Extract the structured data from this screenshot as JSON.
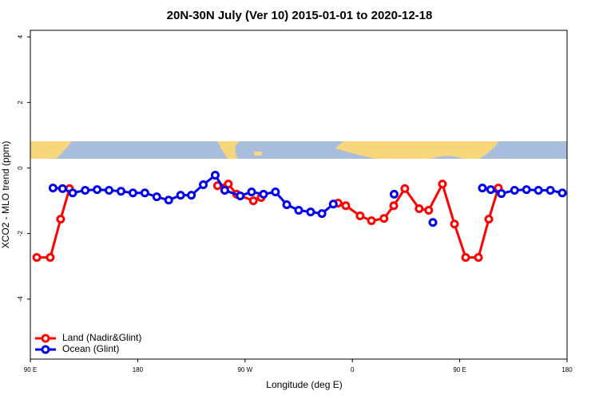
{
  "chart_data": {
    "type": "line",
    "title": "20N-30N July (Ver 10)   2015-01-01 to 2020-12-18",
    "x_label": "Longitude (deg E)",
    "y_label": "XCO2 - MLO trend (ppm)",
    "xlim": [
      90,
      540
    ],
    "ylim": [
      -5.83,
      4.2
    ],
    "xticks": [
      {
        "value": 90,
        "label": "90 E"
      },
      180,
      {
        "value": 270,
        "label": "90 W"
      },
      {
        "value": 360,
        "label": "0"
      },
      {
        "value": 450,
        "label": "90 E"
      },
      {
        "value": 540,
        "label": "180"
      }
    ],
    "yticks": [
      -4,
      -2,
      0,
      2,
      4
    ],
    "legend": "bottom-left",
    "series": [
      {
        "name": "Land (Nadir&Glint)",
        "color": "#ff0000",
        "x": [
          95.4,
          106.7,
          115.4,
          122.8,
          null,
          247,
          256,
          263,
          277,
          283.5,
          null,
          348,
          354.5,
          366.5,
          376,
          386.5,
          394.7,
          404,
          416,
          424,
          435.5,
          445.6,
          455,
          465.7,
          474.4,
          482.4
        ],
        "values": [
          -2.73,
          -2.73,
          -1.56,
          -0.63,
          null,
          -0.54,
          -0.49,
          -0.8,
          -1.0,
          -0.9,
          null,
          -1.07,
          -1.15,
          -1.46,
          -1.61,
          -1.54,
          -1.15,
          -0.63,
          -1.24,
          -1.29,
          -0.49,
          -1.71,
          -2.73,
          -2.73,
          -1.56,
          -0.61
        ]
      },
      {
        "name": "Ocean (Glint)",
        "color": "#0000ee",
        "x": [
          109,
          117,
          125.5,
          136,
          146,
          156,
          166,
          176,
          186,
          196,
          206,
          216,
          225,
          235,
          245,
          253,
          266,
          275.5,
          285.5,
          295.5,
          305,
          315,
          325,
          334.5,
          344,
          null,
          395,
          null,
          427.5,
          null,
          469,
          476,
          485,
          496,
          506,
          516,
          526,
          536
        ],
        "values": [
          -0.61,
          -0.63,
          -0.76,
          -0.68,
          -0.66,
          -0.68,
          -0.71,
          -0.76,
          -0.76,
          -0.88,
          -0.98,
          -0.83,
          -0.83,
          -0.51,
          -0.22,
          -0.68,
          -0.85,
          -0.73,
          -0.8,
          -0.73,
          -1.12,
          -1.29,
          -1.34,
          -1.39,
          -1.1,
          null,
          -0.8,
          null,
          -1.66,
          null,
          -0.61,
          -0.66,
          -0.78,
          -0.68,
          -0.66,
          -0.68,
          -0.68,
          -0.76
        ]
      }
    ]
  }
}
